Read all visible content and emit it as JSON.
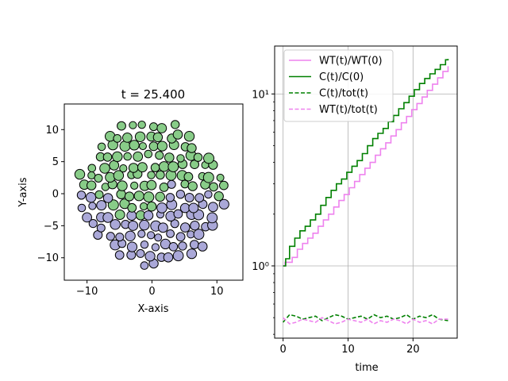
{
  "chart_data": [
    {
      "type": "scatter",
      "title": "t = 25.400",
      "xlabel": "X-axis",
      "ylabel": "Y-axis",
      "xlim": [
        -13.5,
        14.0
      ],
      "ylim": [
        -13.5,
        14.0
      ],
      "xticks": [
        -10,
        0,
        10
      ],
      "yticks": [
        -10,
        -5,
        0,
        5,
        10
      ],
      "xtick_labels": [
        "−10",
        "0",
        "10"
      ],
      "ytick_labels": [
        "−10",
        "−5",
        "0",
        "5",
        "10"
      ],
      "grid": false,
      "colors": {
        "green": "#88cc88",
        "purple": "#aaa8d8",
        "edge": "#000000"
      },
      "cell_radius_range": [
        0.55,
        0.8
      ],
      "disk_radius": 11.2,
      "split_description": "green cells fill upper region, purple cells fill lower region, irregular boundary near y=0"
    },
    {
      "type": "line",
      "xlabel": "time",
      "ylabel": "",
      "xlim": [
        -1.3,
        26.8
      ],
      "ylim": [
        0.38,
        19
      ],
      "yscale": "log",
      "xticks": [
        0,
        10,
        20
      ],
      "xtick_labels": [
        "0",
        "10",
        "20"
      ],
      "yticks_major": [
        1,
        10
      ],
      "ytick_labels": [
        "10⁰",
        "10¹"
      ],
      "grid": true,
      "legend_position": "upper left",
      "series": [
        {
          "name": "WT(t)/WT(0)",
          "color": "#ee82ee",
          "style": "solid",
          "x": [
            0,
            0.3,
            1.4,
            2.2,
            3.0,
            3.8,
            4.6,
            5.4,
            6.2,
            7.0,
            7.8,
            8.6,
            9.4,
            10.2,
            11.0,
            11.8,
            12.6,
            13.4,
            14.2,
            15.0,
            15.8,
            16.6,
            17.4,
            18.2,
            19.0,
            19.8,
            20.6,
            21.4,
            22.2,
            23.0,
            23.8,
            24.6,
            25.4
          ],
          "y": [
            1.0,
            1.05,
            1.12,
            1.25,
            1.35,
            1.45,
            1.55,
            1.7,
            1.85,
            2.0,
            2.2,
            2.4,
            2.6,
            2.85,
            3.1,
            3.4,
            3.7,
            4.0,
            4.4,
            4.8,
            5.2,
            5.7,
            6.2,
            6.8,
            7.4,
            8.1,
            8.8,
            9.6,
            10.5,
            11.4,
            12.4,
            13.5,
            14.5
          ]
        },
        {
          "name": "C(t)/C(0)",
          "color": "#008000",
          "style": "solid",
          "x": [
            0,
            0.4,
            1.0,
            1.8,
            2.6,
            3.4,
            4.2,
            5.0,
            5.8,
            6.6,
            7.4,
            8.2,
            9.0,
            9.8,
            10.6,
            11.4,
            12.2,
            13.0,
            13.8,
            14.6,
            15.4,
            16.2,
            17.0,
            17.8,
            18.6,
            19.4,
            20.2,
            21.0,
            21.8,
            22.6,
            23.4,
            24.2,
            25.0,
            25.4
          ],
          "y": [
            1.0,
            1.1,
            1.3,
            1.45,
            1.6,
            1.7,
            1.85,
            2.0,
            2.25,
            2.5,
            2.75,
            3.0,
            3.2,
            3.5,
            3.8,
            4.1,
            4.5,
            5.0,
            5.5,
            5.9,
            6.3,
            6.9,
            7.5,
            8.2,
            8.9,
            9.7,
            10.6,
            11.5,
            12.3,
            13.1,
            13.9,
            14.8,
            15.8,
            16.0
          ]
        },
        {
          "name": "C(t)/tot(t)",
          "color": "#008000",
          "style": "dashed",
          "x": [
            0,
            1,
            2,
            3,
            4,
            5,
            6,
            7,
            8,
            9,
            10,
            11,
            12,
            13,
            14,
            15,
            16,
            17,
            18,
            19,
            20,
            21,
            22,
            23,
            24,
            25.4
          ],
          "y": [
            0.47,
            0.52,
            0.51,
            0.49,
            0.5,
            0.51,
            0.48,
            0.5,
            0.52,
            0.51,
            0.49,
            0.5,
            0.51,
            0.49,
            0.52,
            0.5,
            0.51,
            0.49,
            0.5,
            0.52,
            0.49,
            0.51,
            0.5,
            0.52,
            0.49,
            0.48
          ]
        },
        {
          "name": "WT(t)/tot(t)",
          "color": "#ee82ee",
          "style": "dashed",
          "x": [
            0,
            1,
            2,
            3,
            4,
            5,
            6,
            7,
            8,
            9,
            10,
            11,
            12,
            13,
            14,
            15,
            16,
            17,
            18,
            19,
            20,
            21,
            22,
            23,
            24,
            25.4
          ],
          "y": [
            0.5,
            0.46,
            0.47,
            0.49,
            0.48,
            0.47,
            0.5,
            0.48,
            0.46,
            0.47,
            0.49,
            0.48,
            0.47,
            0.49,
            0.46,
            0.48,
            0.47,
            0.49,
            0.48,
            0.46,
            0.49,
            0.47,
            0.48,
            0.46,
            0.49,
            0.49
          ]
        }
      ]
    }
  ]
}
